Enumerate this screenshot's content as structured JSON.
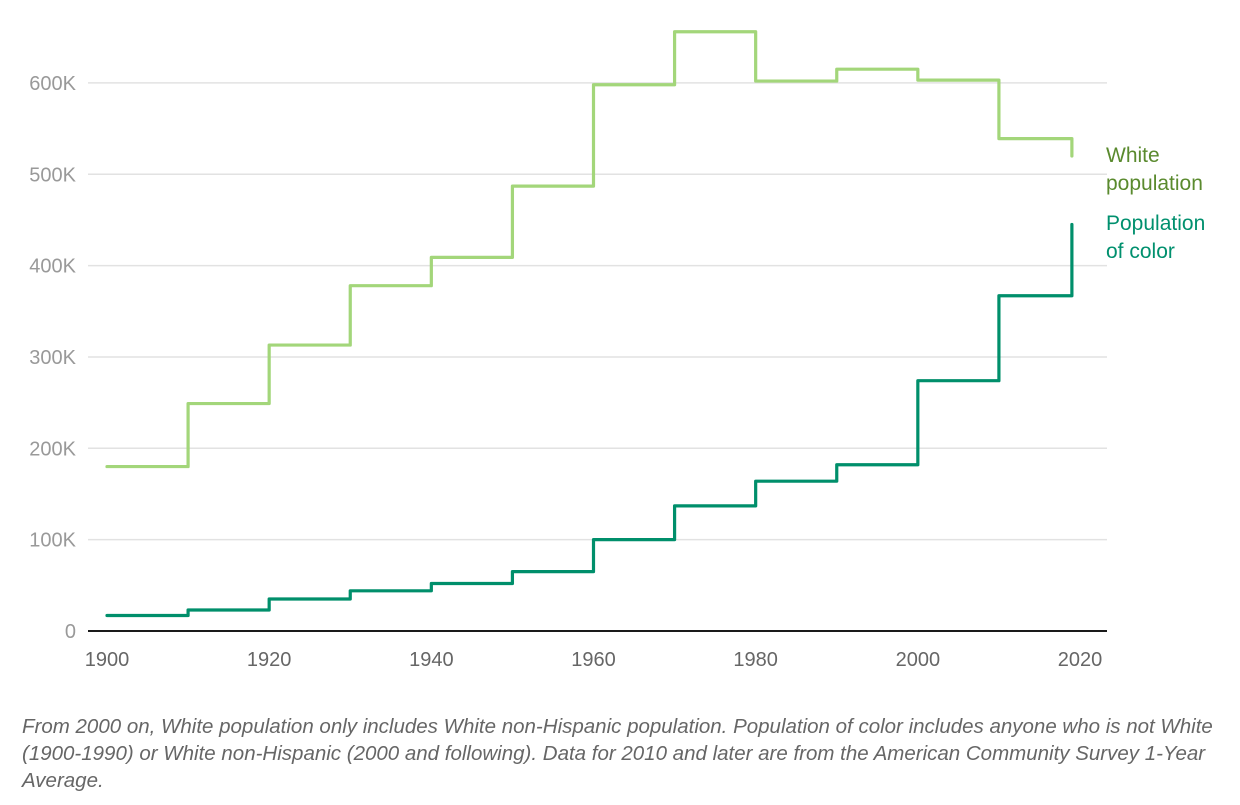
{
  "chart_data": {
    "type": "line",
    "style": "step",
    "x": [
      1900,
      1910,
      1920,
      1930,
      1940,
      1950,
      1960,
      1970,
      1980,
      1990,
      2000,
      2010,
      2019
    ],
    "series": [
      {
        "name": "White population",
        "color": "#a3d67a",
        "label_color": "#5a8a2e",
        "values": [
          180000,
          249000,
          313000,
          378000,
          409000,
          487000,
          598000,
          656000,
          602000,
          615000,
          603000,
          539000,
          520000
        ]
      },
      {
        "name": "Population of color",
        "color": "#008f6b",
        "label_color": "#00906e",
        "values": [
          17000,
          23000,
          35000,
          44000,
          52000,
          65000,
          100000,
          137000,
          164000,
          182000,
          274000,
          367000,
          445000
        ]
      }
    ],
    "xlim": [
      1900,
      2020
    ],
    "ylim": [
      0,
      650000
    ],
    "xticks": [
      "1900",
      "1920",
      "1940",
      "1960",
      "1980",
      "2000",
      "2020"
    ],
    "yticks": [
      "0",
      "100K",
      "200K",
      "300K",
      "400K",
      "500K",
      "600K"
    ],
    "grid": true,
    "legend": "direct labels at right"
  },
  "labels": {
    "white_line1": "White",
    "white_line2": "population",
    "color_line1": "Population",
    "color_line2": "of color"
  },
  "note": "From 2000 on, White population only includes White non-Hispanic population. Population of color includes anyone who is not White (1900-1990) or White non-Hispanic (2000 and following). Data for 2010 and later are from the American Community Survey 1-Year Average."
}
